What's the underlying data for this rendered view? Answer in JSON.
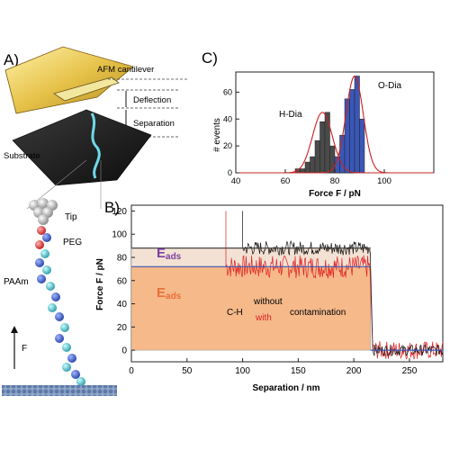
{
  "panels": {
    "a": {
      "label": "A)",
      "cantilever": "AFM cantilever",
      "deflection": "Deflection",
      "separation": "Separation",
      "substrate": "Substrate",
      "tip": "Tip",
      "peg": "PEG",
      "paam": "PAAm",
      "force_arrow": "F"
    },
    "b": {
      "label": "B)"
    },
    "c": {
      "label": "C)"
    }
  },
  "chart_data": [
    {
      "panel": "C",
      "type": "bar",
      "xlabel": "Force F / pN",
      "ylabel": "# events",
      "xlim": [
        40,
        120
      ],
      "ylim": [
        0,
        75
      ],
      "xticks": [
        40,
        60,
        80,
        100
      ],
      "yticks": [
        0,
        20,
        40,
        60
      ],
      "bin_width": 2,
      "series": [
        {
          "name": "H-Dia",
          "color": "#4a4a4a",
          "bins": [
            64,
            66,
            68,
            70,
            72,
            74,
            76,
            78,
            80
          ],
          "values": [
            3,
            3,
            8,
            12,
            24,
            38,
            45,
            20,
            6
          ],
          "fit_mean": 75,
          "fit_sigma": 4,
          "fit_peak": 45
        },
        {
          "name": "O-Dia",
          "color": "#3a57b8",
          "bins": [
            80,
            82,
            84,
            86,
            88,
            90
          ],
          "values": [
            12,
            28,
            55,
            62,
            72,
            40
          ],
          "fit_mean": 88,
          "fit_sigma": 3.5,
          "fit_peak": 72
        }
      ],
      "fit_color": "#cc2222"
    },
    {
      "panel": "B",
      "type": "line",
      "xlabel": "Separation / nm",
      "ylabel": "Force F / pN",
      "xlim": [
        0,
        280
      ],
      "ylim": [
        -10,
        125
      ],
      "xticks": [
        0,
        50,
        100,
        150,
        200,
        250
      ],
      "yticks": [
        0,
        20,
        40,
        60,
        80,
        100,
        120
      ],
      "regions": {
        "eads_without": {
          "label": "E",
          "subscript": "ads",
          "x": [
            0,
            215
          ],
          "y": [
            72,
            88
          ],
          "color": "#7b3fa0"
        },
        "eads_with": {
          "label": "E",
          "subscript": "ads",
          "x": [
            0,
            215
          ],
          "y": [
            0,
            72
          ],
          "color": "#e8703a"
        }
      },
      "annotations": {
        "ch": "C-H",
        "without": "without",
        "with": "with",
        "contamination": "contamination"
      },
      "series": [
        {
          "name": "without",
          "color": "#111111",
          "plateau": 88,
          "x_start": 100,
          "x_end": 215,
          "noise": 6
        },
        {
          "name": "with",
          "color": "#e02020",
          "plateau": 72,
          "x_start": 85,
          "x_end": 215,
          "noise": 10
        }
      ],
      "plateau_lines": [
        {
          "y": 88,
          "color": "#333333"
        },
        {
          "y": 72,
          "color": "#3a57b8"
        }
      ]
    }
  ]
}
